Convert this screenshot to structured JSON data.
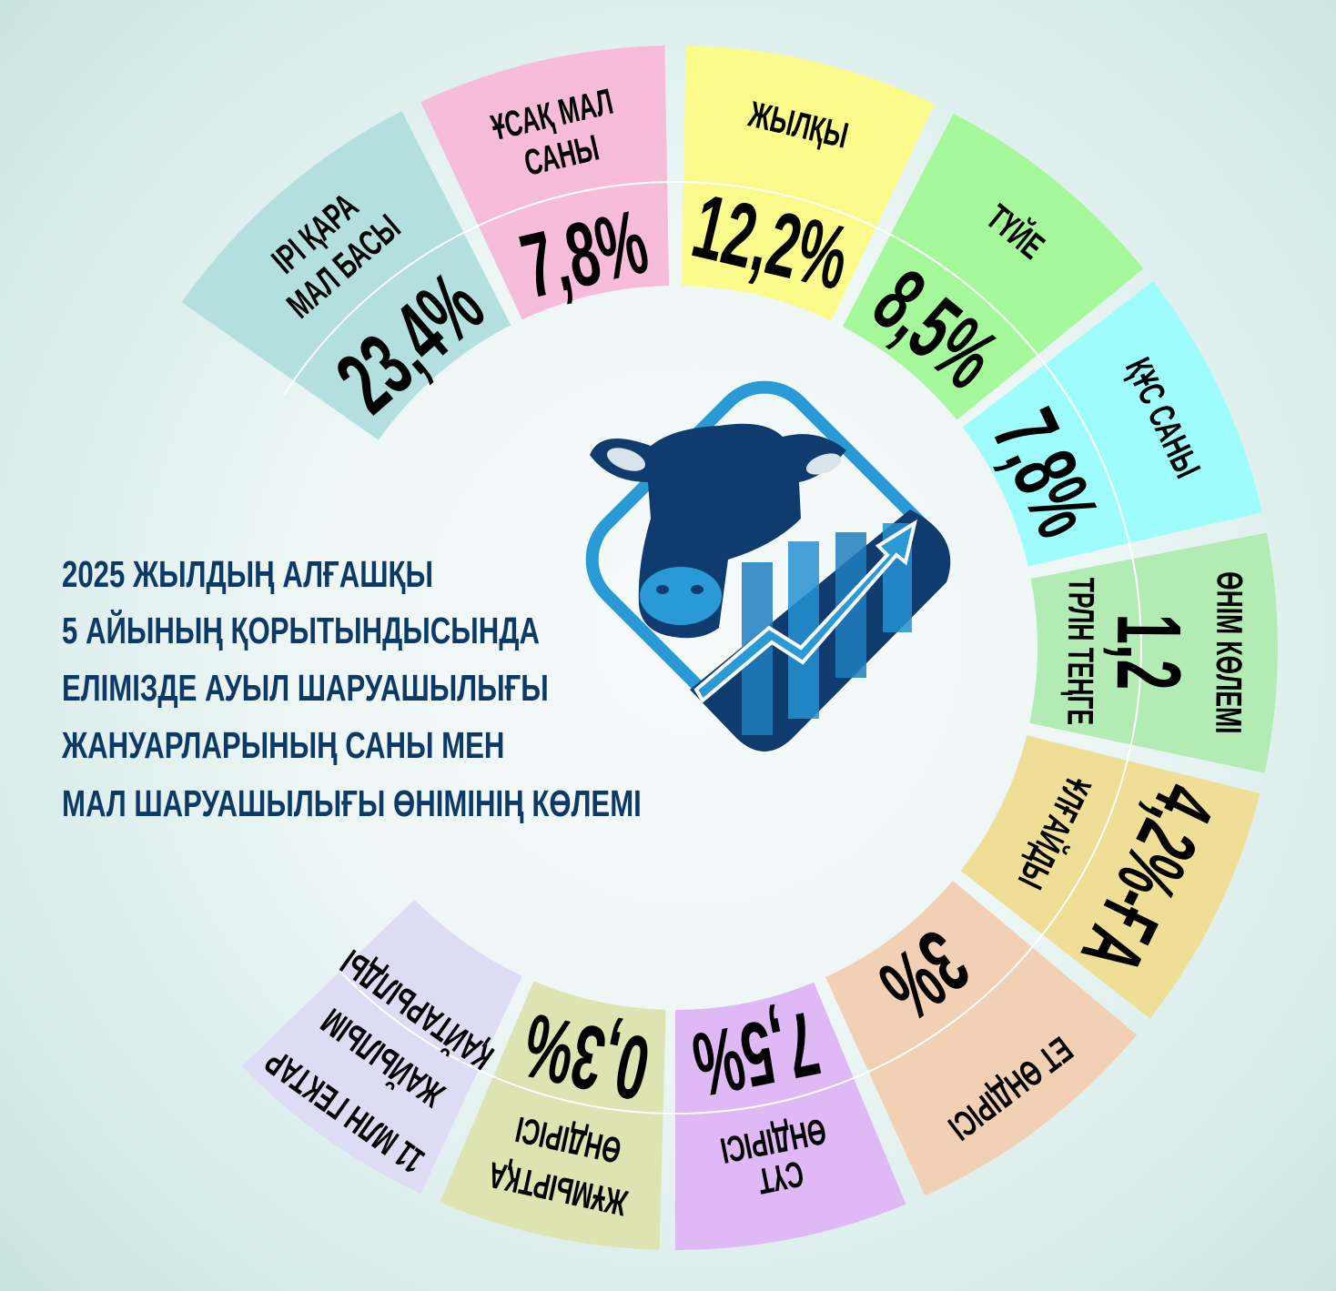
{
  "title": {
    "lines": [
      "2025 ЖЫЛДЫҢ АЛҒАШҚЫ",
      "5 АЙЫНЫҢ ҚОРЫТЫНДЫСЫНДА",
      "ЕЛІМІЗДЕ АУЫЛ ШАРУАШЫЛЫҒЫ",
      "ЖАНУАРЛАРЫНЫҢ САНЫ МЕН",
      "МАЛ ШАРУАШЫЛЫҒЫ ӨНІМІНІҢ КӨЛЕМІ"
    ],
    "color": "#0d3966"
  },
  "logo_icon": "cow-with-growth-chart-icon",
  "segments": [
    {
      "id": "cattle",
      "color": "#b3e0df",
      "lines": [
        {
          "text": "ІРІ ҚАРА",
          "kind": "label"
        },
        {
          "text": "МАЛ БАСЫ",
          "kind": "label"
        },
        {
          "text": "23,4%",
          "kind": "value"
        }
      ]
    },
    {
      "id": "small-livestock",
      "color": "#f6bcd9",
      "lines": [
        {
          "text": "ҰСАҚ МАЛ",
          "kind": "label"
        },
        {
          "text": "САНЫ",
          "kind": "label"
        },
        {
          "text": "7,8%",
          "kind": "value"
        }
      ]
    },
    {
      "id": "horses",
      "color": "#fbfb8c",
      "lines": [
        {
          "text": "ЖЫЛҚЫ",
          "kind": "label"
        },
        {
          "text": "12,2%",
          "kind": "value"
        }
      ]
    },
    {
      "id": "camels",
      "color": "#a5f99a",
      "lines": [
        {
          "text": "ТҮЙЕ",
          "kind": "label"
        },
        {
          "text": "8,5%",
          "kind": "value"
        }
      ]
    },
    {
      "id": "poultry",
      "color": "#9efcfc",
      "lines": [
        {
          "text": "ҚҰС САНЫ",
          "kind": "label"
        },
        {
          "text": "7,8%",
          "kind": "value"
        }
      ]
    },
    {
      "id": "output-volume",
      "color": "#b3ebb4",
      "lines": [
        {
          "text": "ӨНІМ КӨЛЕМІ",
          "kind": "label"
        },
        {
          "text": "1,2",
          "kind": "value"
        },
        {
          "text": "ТРЛН ТЕҢГЕ",
          "kind": "label"
        }
      ]
    },
    {
      "id": "increase",
      "color": "#efde95",
      "lines": [
        {
          "text": "4,2%-ҒА",
          "kind": "value"
        },
        {
          "text": "ҰЛҒАЙДЫ",
          "kind": "label"
        }
      ]
    },
    {
      "id": "meat",
      "color": "#f2d0b4",
      "lines": [
        {
          "text": "ЕТ ӨНДІРІСІ",
          "kind": "label"
        },
        {
          "text": "3%",
          "kind": "value"
        }
      ]
    },
    {
      "id": "milk",
      "color": "#dfb9f5",
      "lines": [
        {
          "text": "СҮТ",
          "kind": "label"
        },
        {
          "text": "ӨНДІРІСІ",
          "kind": "label"
        },
        {
          "text": "7,5%",
          "kind": "value"
        }
      ]
    },
    {
      "id": "eggs",
      "color": "#dde3b1",
      "lines": [
        {
          "text": "ЖҰМЫРТҚА",
          "kind": "label"
        },
        {
          "text": "ӨНДІРІСІ",
          "kind": "label"
        },
        {
          "text": "0,3%",
          "kind": "value"
        }
      ]
    },
    {
      "id": "pastures",
      "color": "#dedcf5",
      "lines": [
        {
          "text": "11 МЛН ГЕКТАР",
          "kind": "label"
        },
        {
          "text": "ЖАЙЫЛЫМ",
          "kind": "label"
        },
        {
          "text": "ҚАЙТАРЫЛДЫ",
          "kind": "label"
        }
      ]
    }
  ]
}
